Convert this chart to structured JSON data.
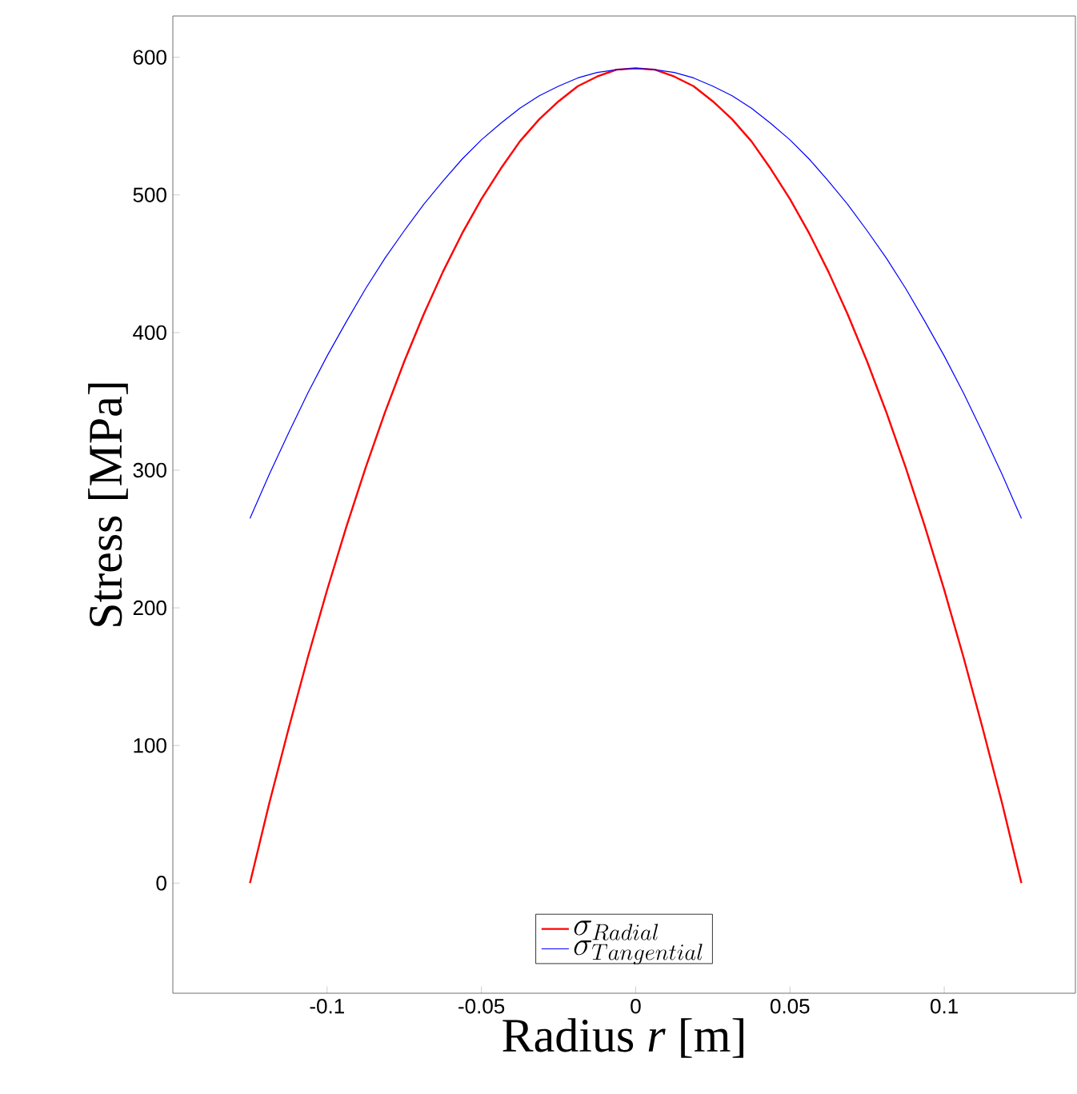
{
  "chart_data": {
    "type": "line",
    "xlabel": "Radius *r*   [m]",
    "ylabel": "Stress [MPa]",
    "x": [
      -0.125,
      -0.11875,
      -0.1125,
      -0.10625,
      -0.1,
      -0.09375,
      -0.0875,
      -0.08125,
      -0.075,
      -0.06875,
      -0.0625,
      -0.05625,
      -0.05,
      -0.04375,
      -0.0375,
      -0.03125,
      -0.025,
      -0.01875,
      -0.0125,
      -0.00625,
      0,
      0.00625,
      0.0125,
      0.01875,
      0.025,
      0.03125,
      0.0375,
      0.04375,
      0.05,
      0.05625,
      0.0625,
      0.06875,
      0.075,
      0.08125,
      0.0875,
      0.09375,
      0.1,
      0.10625,
      0.1125,
      0.11875,
      0.125
    ],
    "series": [
      {
        "name": "\\sigma_{Radial}",
        "color": "#ff0000",
        "values": [
          0,
          58,
          112,
          164,
          213,
          259,
          302,
          342,
          379,
          413,
          444,
          472,
          497,
          519,
          539,
          555,
          568,
          579,
          586,
          591,
          592,
          591,
          586,
          579,
          568,
          555,
          539,
          519,
          497,
          472,
          444,
          413,
          379,
          342,
          302,
          259,
          213,
          164,
          112,
          58,
          0
        ]
      },
      {
        "name": "\\sigma_{Tangential}",
        "color": "#0000ff",
        "values": [
          265,
          297,
          327,
          356,
          383,
          408,
          432,
          454,
          474,
          493,
          510,
          526,
          540,
          552,
          563,
          572,
          579,
          585,
          589,
          591,
          592,
          591,
          589,
          585,
          579,
          572,
          563,
          552,
          540,
          526,
          510,
          493,
          474,
          454,
          432,
          408,
          383,
          356,
          327,
          297,
          265
        ]
      }
    ],
    "xlim": [
      -0.15,
      0.1425
    ],
    "ylim": [
      -80,
      630
    ],
    "xticks": [
      -0.1,
      -0.05,
      0,
      0.05,
      0.1
    ],
    "yticks": [
      0,
      100,
      200,
      300,
      400,
      500,
      600
    ],
    "grid": false,
    "legend": "bottom",
    "marker": "none",
    "line_style": "solid"
  }
}
